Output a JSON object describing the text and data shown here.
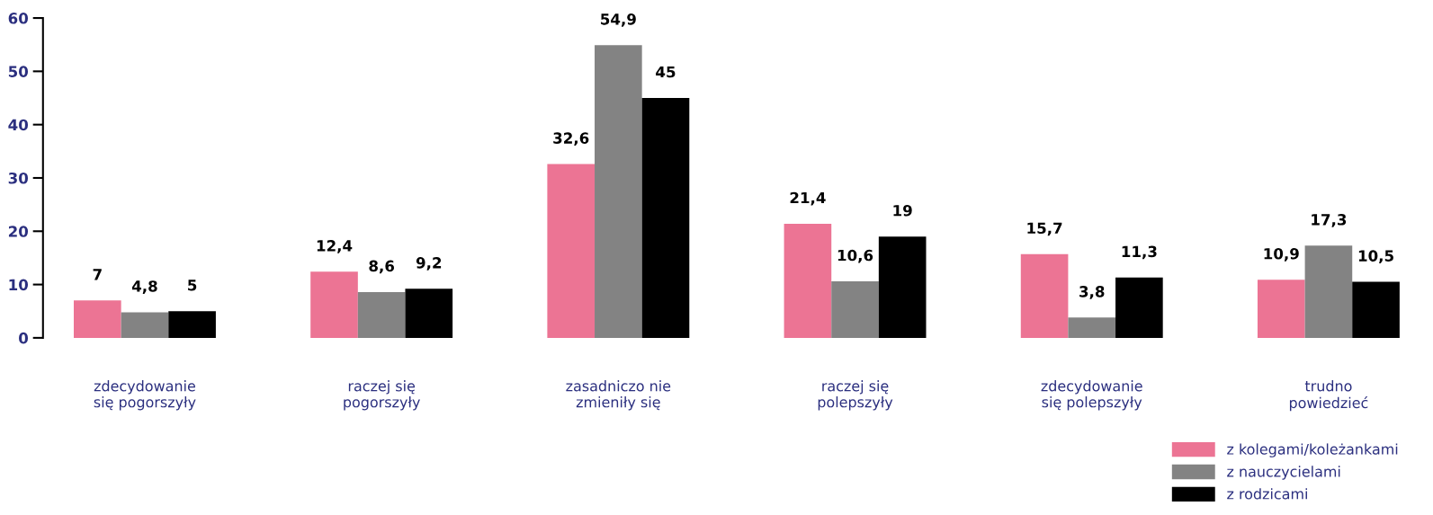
{
  "chart_data": {
    "type": "bar",
    "categories": [
      "zdecydowanie\nsię pogorszyły",
      "raczej się\npogorszyły",
      "zasadniczo nie\nzmieniły się",
      "raczej się\npolepszyły",
      "zdecydowanie\nsię polepszyły",
      "trudno\npowiedzieć"
    ],
    "series": [
      {
        "name": "z kolegami/koleżankami",
        "color": "#ec7494",
        "values": [
          7,
          12.4,
          32.6,
          21.4,
          15.7,
          10.9
        ],
        "value_labels": [
          "7",
          "12,4",
          "32,6",
          "21,4",
          "15,7",
          "10,9"
        ]
      },
      {
        "name": "z nauczycielami",
        "color": "#838383",
        "values": [
          4.8,
          8.6,
          54.9,
          10.6,
          3.8,
          17.3
        ],
        "value_labels": [
          "4,8",
          "8,6",
          "54,9",
          "10,6",
          "3,8",
          "17,3"
        ]
      },
      {
        "name": "z rodzicami",
        "color": "#000000",
        "values": [
          5,
          9.2,
          45,
          19,
          11.3,
          10.5
        ],
        "value_labels": [
          "5",
          "9,2",
          "45",
          "19",
          "11,3",
          "10,5"
        ]
      }
    ],
    "ylim": [
      0,
      60
    ],
    "yticks": [
      0,
      10,
      20,
      30,
      40,
      50,
      60
    ],
    "grid": false,
    "legend": "bottom right"
  }
}
